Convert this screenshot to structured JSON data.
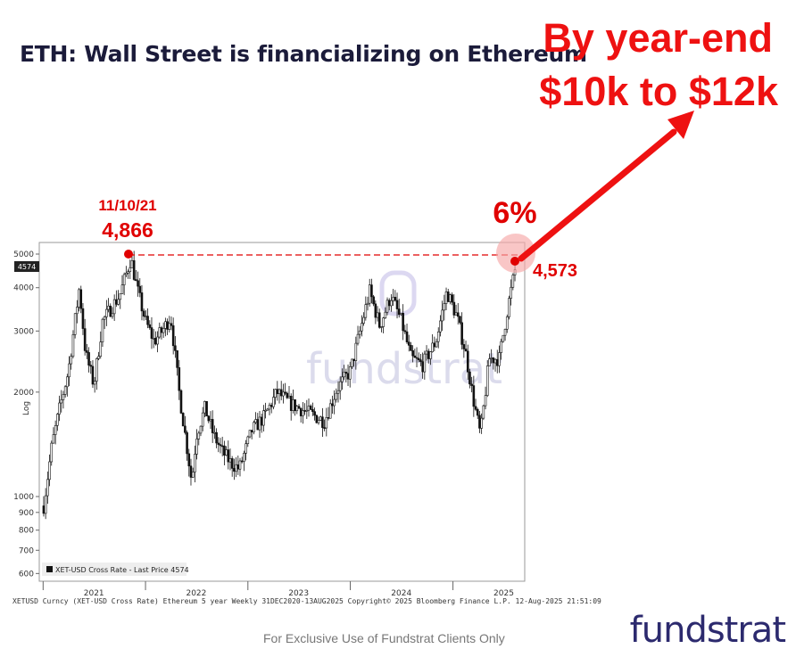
{
  "title": "ETH: Wall Street is financializing on Ethereum",
  "headline": {
    "line1": "By year-end",
    "line2": "$10k to $12k"
  },
  "footer": "For Exclusive Use of Fundstrat Clients Only",
  "logo": "fundstrat",
  "watermark": "fundstrat",
  "colors": {
    "red": "#e00000",
    "candle": "#111111",
    "navy": "#2c2a6e"
  },
  "chart_data": {
    "type": "candlestick",
    "scale": "log",
    "ylabel": "Log",
    "ylim": [
      570,
      5400
    ],
    "y_ticks": [
      5000,
      4000,
      3000,
      2000,
      1000,
      900,
      800,
      700,
      600
    ],
    "x_tick_labels": [
      "2021",
      "2022",
      "2023",
      "2024",
      "2025"
    ],
    "x_range": [
      "2020-12-31",
      "2025-08-13"
    ],
    "last_price_badge": "4574",
    "legend": "XET-USD Cross Rate - Last Price 4574",
    "source": "XETUSD Curncy (XET-USD Cross Rate) Ethereum 5 year  Weekly 31DEC2020-13AUG2025  Copyright© 2025 Bloomberg Finance L.P.    12-Aug-2025 21:51:09",
    "annotations": {
      "peak_date": "11/10/21",
      "peak_value": "4,866",
      "current_value": "4,573",
      "gap_pct": "6%"
    },
    "series": [
      {
        "x": "2021-01-03",
        "close": 940
      },
      {
        "x": "2021-02-01",
        "close": 1400
      },
      {
        "x": "2021-03-01",
        "close": 1800
      },
      {
        "x": "2021-04-01",
        "close": 2300
      },
      {
        "x": "2021-05-10",
        "close": 4000
      },
      {
        "x": "2021-06-01",
        "close": 2600
      },
      {
        "x": "2021-07-01",
        "close": 2100
      },
      {
        "x": "2021-08-01",
        "close": 3200
      },
      {
        "x": "2021-09-01",
        "close": 3500
      },
      {
        "x": "2021-10-01",
        "close": 3800
      },
      {
        "x": "2021-11-10",
        "close": 4866
      },
      {
        "x": "2021-12-01",
        "close": 4000
      },
      {
        "x": "2022-01-01",
        "close": 3200
      },
      {
        "x": "2022-02-01",
        "close": 2800
      },
      {
        "x": "2022-03-01",
        "close": 3000
      },
      {
        "x": "2022-04-01",
        "close": 3300
      },
      {
        "x": "2022-05-01",
        "close": 2000
      },
      {
        "x": "2022-06-15",
        "close": 1100
      },
      {
        "x": "2022-07-01",
        "close": 1500
      },
      {
        "x": "2022-08-01",
        "close": 1800
      },
      {
        "x": "2022-09-01",
        "close": 1500
      },
      {
        "x": "2022-10-01",
        "close": 1350
      },
      {
        "x": "2022-11-01",
        "close": 1250
      },
      {
        "x": "2022-12-01",
        "close": 1200
      },
      {
        "x": "2023-01-15",
        "close": 1550
      },
      {
        "x": "2023-03-01",
        "close": 1700
      },
      {
        "x": "2023-04-15",
        "close": 2000
      },
      {
        "x": "2023-06-01",
        "close": 1850
      },
      {
        "x": "2023-08-01",
        "close": 1750
      },
      {
        "x": "2023-10-01",
        "close": 1650
      },
      {
        "x": "2023-11-15",
        "close": 2050
      },
      {
        "x": "2024-01-01",
        "close": 2300
      },
      {
        "x": "2024-03-10",
        "close": 3900
      },
      {
        "x": "2024-04-15",
        "close": 3100
      },
      {
        "x": "2024-05-25",
        "close": 3800
      },
      {
        "x": "2024-07-01",
        "close": 3200
      },
      {
        "x": "2024-08-05",
        "close": 2500
      },
      {
        "x": "2024-09-15",
        "close": 2400
      },
      {
        "x": "2024-11-01",
        "close": 2800
      },
      {
        "x": "2024-12-10",
        "close": 3900
      },
      {
        "x": "2025-01-15",
        "close": 3300
      },
      {
        "x": "2025-02-15",
        "close": 2600
      },
      {
        "x": "2025-03-15",
        "close": 1900
      },
      {
        "x": "2025-04-09",
        "close": 1500
      },
      {
        "x": "2025-05-10",
        "close": 2500
      },
      {
        "x": "2025-06-15",
        "close": 2500
      },
      {
        "x": "2025-07-15",
        "close": 3500
      },
      {
        "x": "2025-08-12",
        "close": 4573
      }
    ]
  }
}
